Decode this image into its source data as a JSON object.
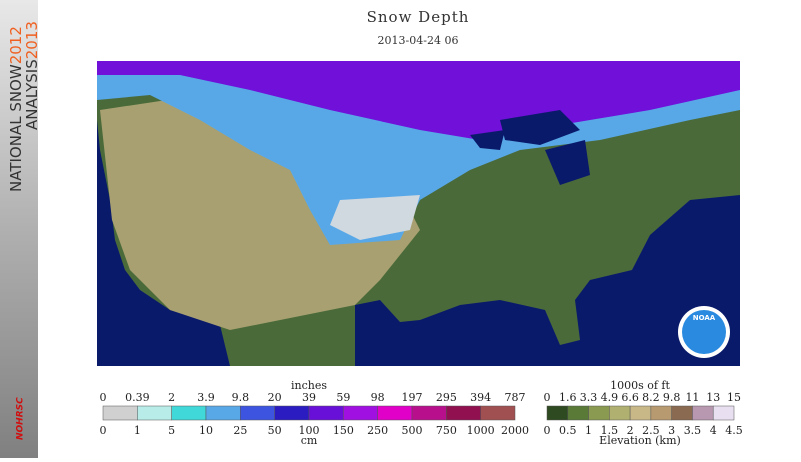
{
  "sidebar": {
    "line1": "NATIONAL SNOW",
    "year1": "2012",
    "line2": "ANALYSIS",
    "year2": "2013",
    "logo": "NOHRSC"
  },
  "header": {
    "title": "Snow Depth",
    "date": "2013-04-24 06"
  },
  "map": {
    "logo": "NOAA"
  },
  "snow_legend": {
    "top_label": "inches",
    "bottom_label": "cm",
    "top_ticks": [
      "0",
      "0.39",
      "2",
      "3.9",
      "9.8",
      "20",
      "39",
      "59",
      "98",
      "197",
      "295",
      "394",
      "787"
    ],
    "bottom_ticks": [
      "0",
      "1",
      "5",
      "10",
      "25",
      "50",
      "100",
      "150",
      "250",
      "500",
      "750",
      "1000",
      "2000"
    ],
    "colors": [
      "#d0d0d0",
      "#b8ece8",
      "#40d8d8",
      "#58a8e8",
      "#3c54e0",
      "#2a1cc0",
      "#6810d8",
      "#a010e0",
      "#e000c8",
      "#b8108c",
      "#901050",
      "#a05050"
    ]
  },
  "elevation_legend": {
    "top_label": "1000s of ft",
    "bottom_label": "Elevation (km)",
    "top_ticks": [
      "0",
      "1.6",
      "3.3",
      "4.9",
      "6.6",
      "8.2",
      "9.8",
      "11",
      "13",
      "15"
    ],
    "bottom_ticks": [
      "0",
      "0.5",
      "1",
      "1.5",
      "2",
      "2.5",
      "3",
      "3.5",
      "4",
      "4.5"
    ],
    "colors": [
      "#2e4a20",
      "#5a7a38",
      "#8a9a50",
      "#b0b070",
      "#c8b888",
      "#b89a70",
      "#8a6a50",
      "#b898b0",
      "#e8e0f0"
    ]
  }
}
